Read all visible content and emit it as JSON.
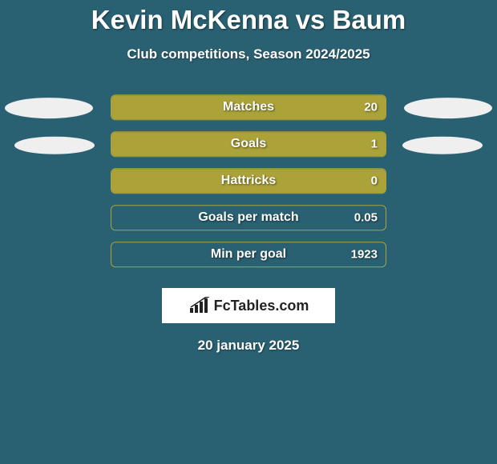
{
  "title": "Kevin McKenna vs Baum",
  "subtitle": "Club competitions, Season 2024/2025",
  "brand": "FcTables.com",
  "date": "20 january 2025",
  "colors": {
    "background": "#2a6172",
    "bar_fill": "#aba239",
    "bar_border": "#aba239",
    "ellipse_left": "#efefef",
    "ellipse_right": "#efefef",
    "text": "#ffffff"
  },
  "ellipse_size": {
    "w": 110,
    "h": 26,
    "small_w": 100,
    "small_h": 22
  },
  "rows": [
    {
      "label": "Matches",
      "value": "20",
      "fill_pct": 100,
      "left_ellipse": true,
      "right_ellipse": true,
      "ellipse_small": false
    },
    {
      "label": "Goals",
      "value": "1",
      "fill_pct": 100,
      "left_ellipse": true,
      "right_ellipse": true,
      "ellipse_small": true
    },
    {
      "label": "Hattricks",
      "value": "0",
      "fill_pct": 100,
      "left_ellipse": false,
      "right_ellipse": false,
      "ellipse_small": false
    },
    {
      "label": "Goals per match",
      "value": "0.05",
      "fill_pct": 0,
      "left_ellipse": false,
      "right_ellipse": false,
      "ellipse_small": false
    },
    {
      "label": "Min per goal",
      "value": "1923",
      "fill_pct": 0,
      "left_ellipse": false,
      "right_ellipse": false,
      "ellipse_small": false
    }
  ]
}
